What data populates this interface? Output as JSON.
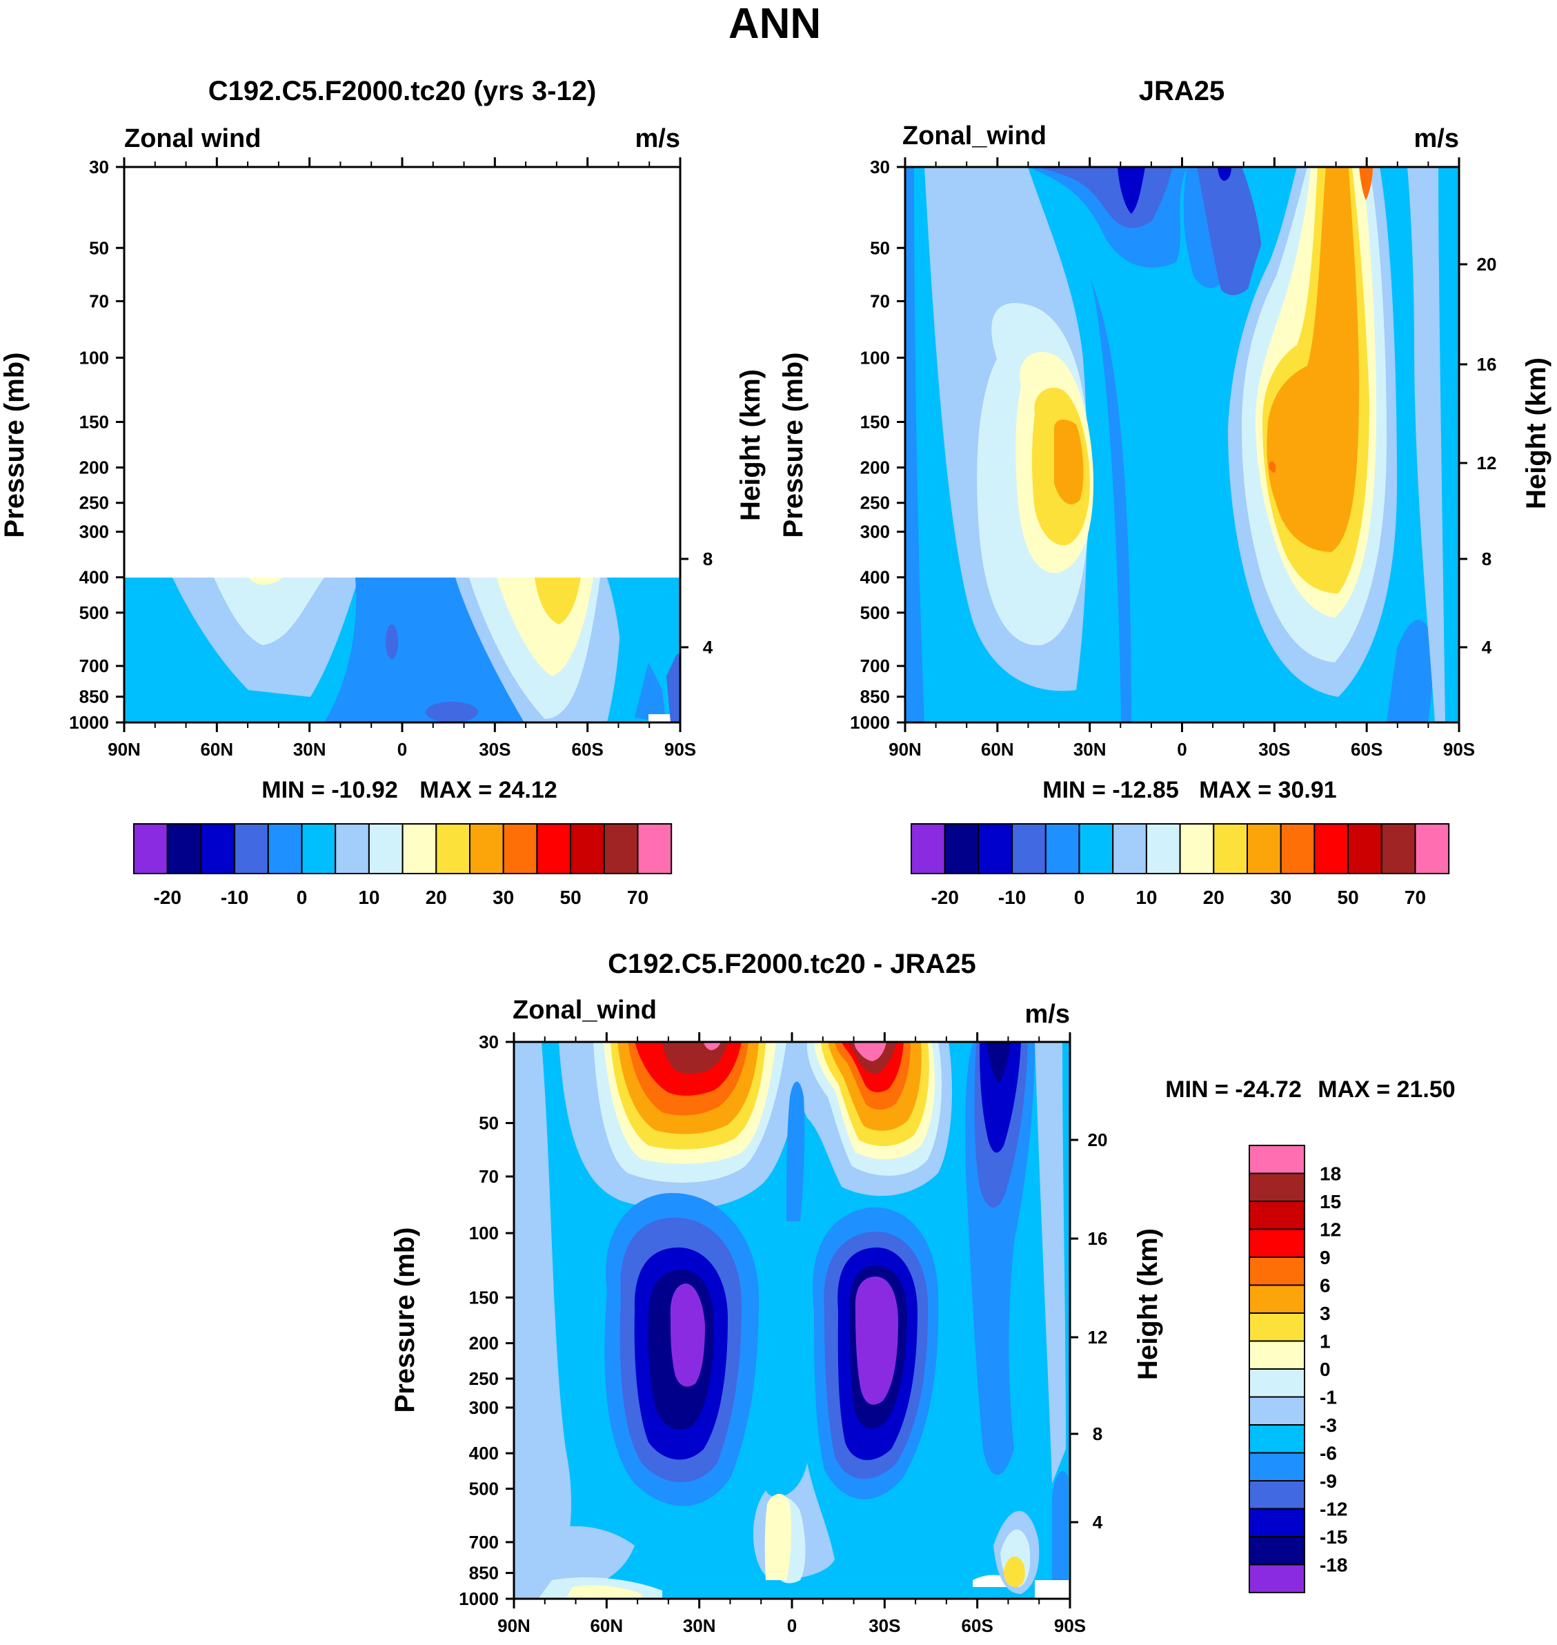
{
  "page_title": "ANN",
  "colors": {
    "abs_levels": [
      "#8a2be2",
      "#00008b",
      "#0000cd",
      "#4169e1",
      "#1e90ff",
      "#00bfff",
      "#a3cdfa",
      "#d2f2fb",
      "#fffec5",
      "#fde13b",
      "#fca50a",
      "#fe6f07",
      "#fe0000",
      "#cc0000",
      "#a02424",
      "#ff6eb0"
    ],
    "diff_levels": [
      "#8a2be2",
      "#00008b",
      "#0000cd",
      "#4169e1",
      "#1e90ff",
      "#00bfff",
      "#a3cdfa",
      "#d2f2fb",
      "#fffec5",
      "#fde13b",
      "#fca50a",
      "#fe6f07",
      "#fe0000",
      "#cc0000",
      "#a02424",
      "#ff6eb0"
    ]
  },
  "chart_data": [
    {
      "type": "heatmap",
      "title": "C192.C5.F2000.tc20 (yrs 3-12)",
      "variable_label": "Zonal wind",
      "units": "m/s",
      "xlabel": "",
      "ylabel": "Pressure (mb)",
      "y2label": "Height (km)",
      "x_ticks": [
        "90N",
        "60N",
        "30N",
        "0",
        "30S",
        "60S",
        "90S"
      ],
      "y_ticks": [
        "30",
        "50",
        "70",
        "100",
        "150",
        "200",
        "250",
        "300",
        "400",
        "500",
        "700",
        "850",
        "1000"
      ],
      "y2_ticks": [
        "8",
        "4"
      ],
      "ylim": [
        1000,
        30
      ],
      "data_top_pressure": 400,
      "min_label": "MIN = -10.92",
      "max_label": "MAX =  24.12",
      "min": -10.92,
      "max": 24.12,
      "colorbar_labels": [
        "-20",
        "-10",
        "0",
        "10",
        "20",
        "30",
        "50",
        "70"
      ]
    },
    {
      "type": "heatmap",
      "title": "JRA25",
      "variable_label": "Zonal_wind",
      "units": "m/s",
      "xlabel": "",
      "ylabel": "Pressure (mb)",
      "y2label": "Height (km)",
      "x_ticks": [
        "90N",
        "60N",
        "30N",
        "0",
        "30S",
        "60S",
        "90S"
      ],
      "y_ticks": [
        "30",
        "50",
        "70",
        "100",
        "150",
        "200",
        "250",
        "300",
        "400",
        "500",
        "700",
        "850",
        "1000"
      ],
      "y2_ticks": [
        "20",
        "16",
        "12",
        "8",
        "4"
      ],
      "ylim": [
        1000,
        30
      ],
      "min_label": "MIN = -12.85",
      "max_label": "MAX =  30.91",
      "min": -12.85,
      "max": 30.91,
      "colorbar_labels": [
        "-20",
        "-10",
        "0",
        "10",
        "20",
        "30",
        "50",
        "70"
      ]
    },
    {
      "type": "heatmap",
      "title": "C192.C5.F2000.tc20 - JRA25",
      "variable_label": "Zonal_wind",
      "units": "m/s",
      "xlabel": "",
      "ylabel": "Pressure (mb)",
      "y2label": "Height (km)",
      "x_ticks": [
        "90N",
        "60N",
        "30N",
        "0",
        "30S",
        "60S",
        "90S"
      ],
      "y_ticks": [
        "30",
        "50",
        "70",
        "100",
        "150",
        "200",
        "250",
        "300",
        "400",
        "500",
        "700",
        "850",
        "1000"
      ],
      "y2_ticks": [
        "20",
        "16",
        "12",
        "8",
        "4"
      ],
      "ylim": [
        1000,
        30
      ],
      "min_label": "MIN = -24.72",
      "max_label": "MAX =  21.50",
      "min": -24.72,
      "max": 21.5,
      "colorbar_labels": [
        "18",
        "15",
        "12",
        "9",
        "6",
        "3",
        "1",
        "0",
        "-1",
        "-3",
        "-6",
        "-9",
        "-12",
        "-15",
        "-18"
      ]
    }
  ]
}
